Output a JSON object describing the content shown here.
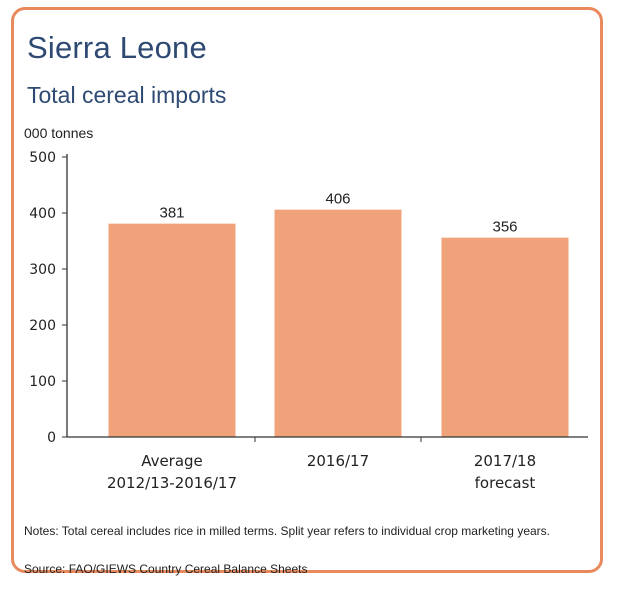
{
  "header": {
    "title": "Sierra Leone",
    "subtitle": "Total cereal imports"
  },
  "footer": {
    "notes": "Notes: Total cereal includes rice in milled terms. Split year refers to individual crop marketing years.",
    "source": "Source: FAO/GIEWS Country Cereal Balance Sheets"
  },
  "colors": {
    "frame": "#e98a5e",
    "bar": "#f0a27a",
    "title": "#2e4a73"
  },
  "chart_data": {
    "type": "bar",
    "title": "Total cereal imports",
    "ylabel": "000 tonnes",
    "xlabel": "",
    "ylim": [
      0,
      500
    ],
    "yticks": [
      0,
      100,
      200,
      300,
      400,
      500
    ],
    "categories": [
      [
        "Average",
        "2012/13-2016/17"
      ],
      [
        "2016/17"
      ],
      [
        "2017/18",
        "forecast"
      ]
    ],
    "values": [
      381,
      406,
      356
    ],
    "data_labels": [
      "381",
      "406",
      "356"
    ],
    "grid": false,
    "legend": "none"
  }
}
